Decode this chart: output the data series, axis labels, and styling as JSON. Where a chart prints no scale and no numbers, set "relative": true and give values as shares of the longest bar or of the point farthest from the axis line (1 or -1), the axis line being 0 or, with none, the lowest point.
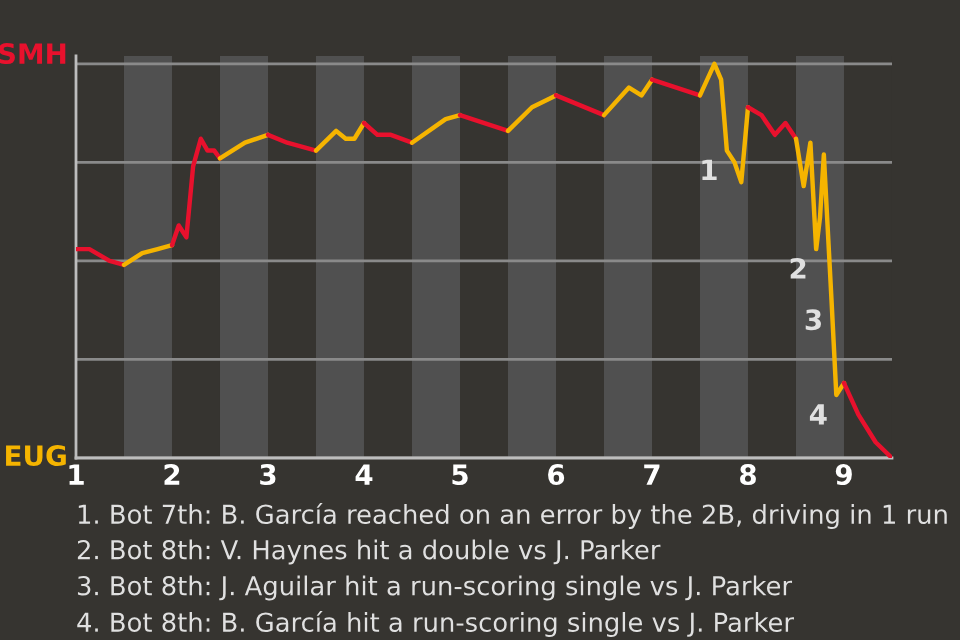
{
  "chart_data": {
    "type": "line",
    "relative": true,
    "grid": "y",
    "tick_labels": "x",
    "xlim": [
      1,
      9.5
    ],
    "xticks": [
      1,
      2,
      3,
      4,
      5,
      6,
      7,
      8,
      9
    ],
    "series": [
      {
        "color": "#e8112d",
        "x": [
          1.0,
          1.14,
          1.35,
          1.5
        ],
        "values": [
          0.53,
          0.53,
          0.5,
          0.49
        ]
      },
      {
        "color": "#f5b400",
        "x": [
          1.5,
          1.69,
          1.85,
          2.0
        ],
        "values": [
          0.49,
          0.52,
          0.53,
          0.54
        ]
      },
      {
        "color": "#e8112d",
        "x": [
          2.0,
          2.07,
          2.15,
          2.22,
          2.3,
          2.37,
          2.44,
          2.5
        ],
        "values": [
          0.54,
          0.59,
          0.56,
          0.74,
          0.81,
          0.78,
          0.78,
          0.76
        ]
      },
      {
        "color": "#f5b400",
        "x": [
          2.5,
          2.76,
          3.0
        ],
        "values": [
          0.76,
          0.8,
          0.82
        ]
      },
      {
        "color": "#e8112d",
        "x": [
          3.0,
          3.2,
          3.5
        ],
        "values": [
          0.82,
          0.8,
          0.78
        ]
      },
      {
        "color": "#f5b400",
        "x": [
          3.5,
          3.71,
          3.81,
          3.9,
          4.0
        ],
        "values": [
          0.78,
          0.83,
          0.81,
          0.81,
          0.85
        ]
      },
      {
        "color": "#e8112d",
        "x": [
          4.0,
          4.14,
          4.28,
          4.5
        ],
        "values": [
          0.85,
          0.82,
          0.82,
          0.8
        ]
      },
      {
        "color": "#f5b400",
        "x": [
          4.5,
          4.85,
          5.0
        ],
        "values": [
          0.8,
          0.86,
          0.87
        ]
      },
      {
        "color": "#e8112d",
        "x": [
          5.0,
          5.5
        ],
        "values": [
          0.87,
          0.83
        ]
      },
      {
        "color": "#f5b400",
        "x": [
          5.5,
          5.75,
          6.0
        ],
        "values": [
          0.83,
          0.89,
          0.92
        ]
      },
      {
        "color": "#e8112d",
        "x": [
          6.0,
          6.5
        ],
        "values": [
          0.92,
          0.87
        ]
      },
      {
        "color": "#f5b400",
        "x": [
          6.5,
          6.76,
          6.89,
          7.0
        ],
        "values": [
          0.87,
          0.94,
          0.92,
          0.96
        ]
      },
      {
        "color": "#e8112d",
        "x": [
          7.0,
          7.5
        ],
        "values": [
          0.96,
          0.92
        ]
      },
      {
        "color": "#f5b400",
        "x": [
          7.5,
          7.65,
          7.72,
          7.78,
          7.86,
          7.93,
          8.0
        ],
        "values": [
          0.92,
          1,
          0.96,
          0.78,
          0.75,
          0.7,
          0.89
        ]
      },
      {
        "color": "#e8112d",
        "x": [
          8.0,
          8.14,
          8.28,
          8.39,
          8.5
        ],
        "values": [
          0.89,
          0.87,
          0.82,
          0.85,
          0.81
        ]
      },
      {
        "color": "#f5b400",
        "x": [
          8.5,
          8.58,
          8.65,
          8.71,
          8.75,
          8.79,
          8.82,
          8.87,
          8.92,
          9.0
        ],
        "values": [
          0.81,
          0.69,
          0.8,
          0.53,
          0.61,
          0.77,
          0.63,
          0.4,
          0.16,
          0.19
        ]
      },
      {
        "color": "#e8112d",
        "x": [
          9.0,
          9.15,
          9.33,
          9.5
        ],
        "values": [
          0.19,
          0.11,
          0.04,
          0
        ]
      }
    ],
    "bands": [
      {
        "axis": "x",
        "from": 1.5,
        "to": 2,
        "color": "#505050"
      },
      {
        "axis": "x",
        "from": 2.5,
        "to": 3,
        "color": "#505050"
      },
      {
        "axis": "x",
        "from": 3.5,
        "to": 4,
        "color": "#505050"
      },
      {
        "axis": "x",
        "from": 4.5,
        "to": 5,
        "color": "#505050"
      },
      {
        "axis": "x",
        "from": 5.5,
        "to": 6,
        "color": "#505050"
      },
      {
        "axis": "x",
        "from": 6.5,
        "to": 7,
        "color": "#505050"
      },
      {
        "axis": "x",
        "from": 7.5,
        "to": 8,
        "color": "#505050"
      },
      {
        "axis": "x",
        "from": 8.5,
        "to": 9,
        "color": "#505050"
      }
    ],
    "annotations": [
      "SMH",
      "EUG",
      {
        "text": "1",
        "x": 7.78,
        "y": 0.78
      },
      {
        "text": "2",
        "x": 8.71,
        "y": 0.53
      },
      {
        "text": "3",
        "x": 8.87,
        "y": 0.4
      },
      {
        "text": "4",
        "x": 8.92,
        "y": 0.16
      },
      "1. Bot 7th: B. García reached on an error by the 2B, driving in 1 run",
      "2. Bot 8th: V. Haynes hit a double vs J. Parker",
      "3. Bot 8th: J. Aguilar hit a run-scoring single vs J. Parker",
      "4. Bot 8th: B. García hit a run-scoring single vs J. Parker"
    ]
  }
}
